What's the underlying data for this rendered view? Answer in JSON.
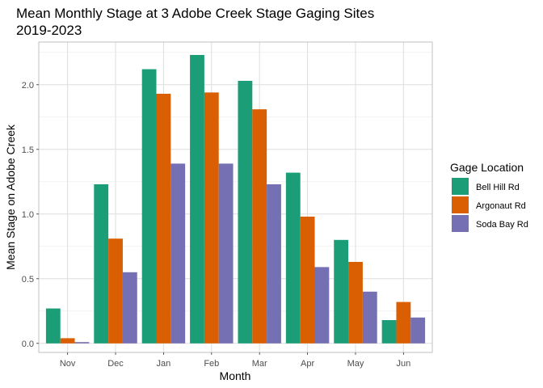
{
  "chart_data": {
    "type": "bar",
    "title": "Mean Monthly Stage at 3 Adobe Creek Stage Gaging Sites",
    "subtitle": "2019-2023",
    "xlabel": "Month",
    "ylabel": "Mean Stage on Adobe Creek",
    "categories": [
      "Nov",
      "Dec",
      "Jan",
      "Feb",
      "Mar",
      "Apr",
      "May",
      "Jun"
    ],
    "ylim": [
      -0.07,
      2.33
    ],
    "yticks": [
      0.0,
      0.5,
      1.0,
      1.5,
      2.0
    ],
    "ytick_labels": [
      "0.0",
      "0.5",
      "1.0",
      "1.5",
      "2.0"
    ],
    "grid": true,
    "legend_title": "Gage Location",
    "legend_position": "right",
    "series": [
      {
        "name": "Bell Hill Rd",
        "color": "#1b9e77",
        "values": [
          0.27,
          1.23,
          2.12,
          2.23,
          2.03,
          1.32,
          0.8,
          0.18
        ]
      },
      {
        "name": "Argonaut Rd",
        "color": "#d95f02",
        "values": [
          0.04,
          0.81,
          1.93,
          1.94,
          1.81,
          0.98,
          0.63,
          0.32
        ]
      },
      {
        "name": "Soda Bay Rd",
        "color": "#7570b3",
        "values": [
          0.01,
          0.55,
          1.39,
          1.39,
          1.23,
          0.59,
          0.4,
          0.2
        ]
      }
    ]
  }
}
